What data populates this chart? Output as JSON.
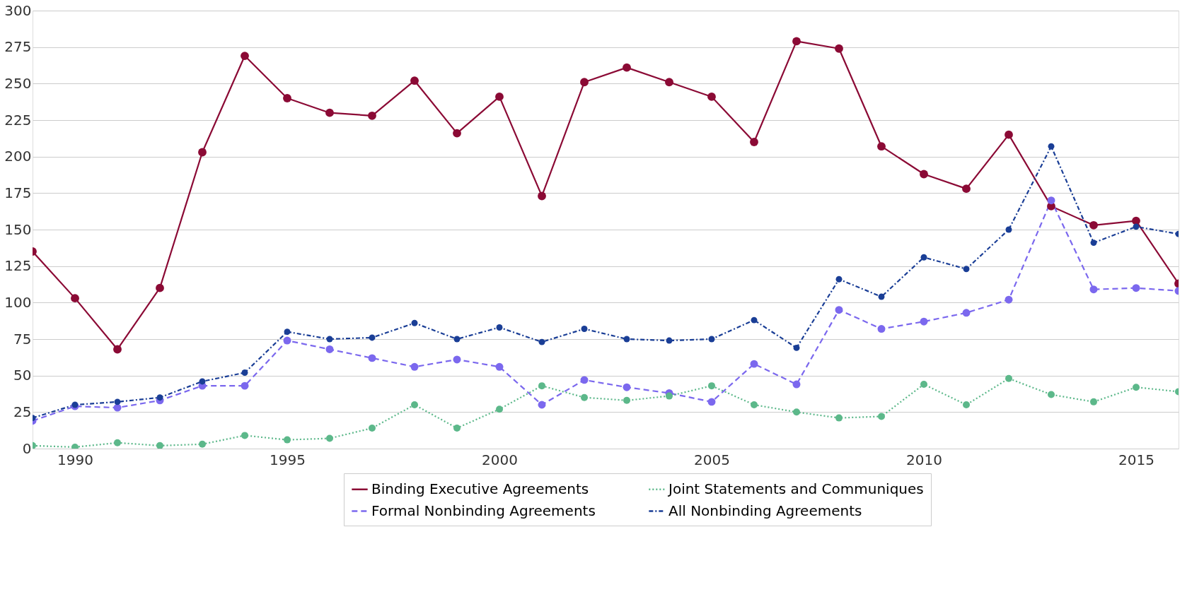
{
  "chart_data": {
    "type": "line",
    "x": [
      1989,
      1990,
      1991,
      1992,
      1993,
      1994,
      1995,
      1996,
      1997,
      1998,
      1999,
      2000,
      2001,
      2002,
      2003,
      2004,
      2005,
      2006,
      2007,
      2008,
      2009,
      2010,
      2011,
      2012,
      2013,
      2014,
      2015,
      2016
    ],
    "series": [
      {
        "name": "Binding Executive Agreements",
        "color": "#8b0a35",
        "line_style": "solid",
        "values": [
          135,
          103,
          68,
          110,
          203,
          269,
          240,
          230,
          228,
          252,
          216,
          241,
          173,
          251,
          261,
          251,
          241,
          210,
          279,
          274,
          207,
          188,
          178,
          215,
          166,
          153,
          156,
          113
        ]
      },
      {
        "name": "Formal Nonbinding Agreements",
        "color": "#7b68ee",
        "line_style": "dashed",
        "values": [
          19,
          29,
          28,
          33,
          43,
          43,
          74,
          68,
          62,
          56,
          61,
          56,
          30,
          47,
          42,
          38,
          32,
          58,
          44,
          95,
          82,
          87,
          93,
          102,
          170,
          109,
          110,
          108
        ]
      },
      {
        "name": "Joint Statements and Communiques",
        "color": "#5cb88a",
        "line_style": "dotted",
        "values": [
          2,
          1,
          4,
          2,
          3,
          9,
          6,
          7,
          14,
          30,
          14,
          27,
          43,
          35,
          33,
          36,
          43,
          30,
          25,
          21,
          22,
          44,
          30,
          48,
          37,
          32,
          42,
          39
        ]
      },
      {
        "name": "All Nonbinding Agreements",
        "color": "#1a3e96",
        "line_style": "dashdot",
        "values": [
          21,
          30,
          32,
          35,
          46,
          52,
          80,
          75,
          76,
          86,
          75,
          83,
          73,
          82,
          75,
          74,
          75,
          88,
          69,
          116,
          104,
          131,
          123,
          150,
          207,
          141,
          152,
          147
        ]
      }
    ],
    "xlim": [
      1989,
      2016
    ],
    "xticks": [
      1990,
      1995,
      2000,
      2005,
      2010,
      2015
    ],
    "ylim": [
      0,
      300
    ],
    "yticks": [
      0,
      25,
      50,
      75,
      100,
      125,
      150,
      175,
      200,
      225,
      250,
      275,
      300
    ],
    "grid": "y",
    "legend": "bottom",
    "marker": "circle"
  }
}
